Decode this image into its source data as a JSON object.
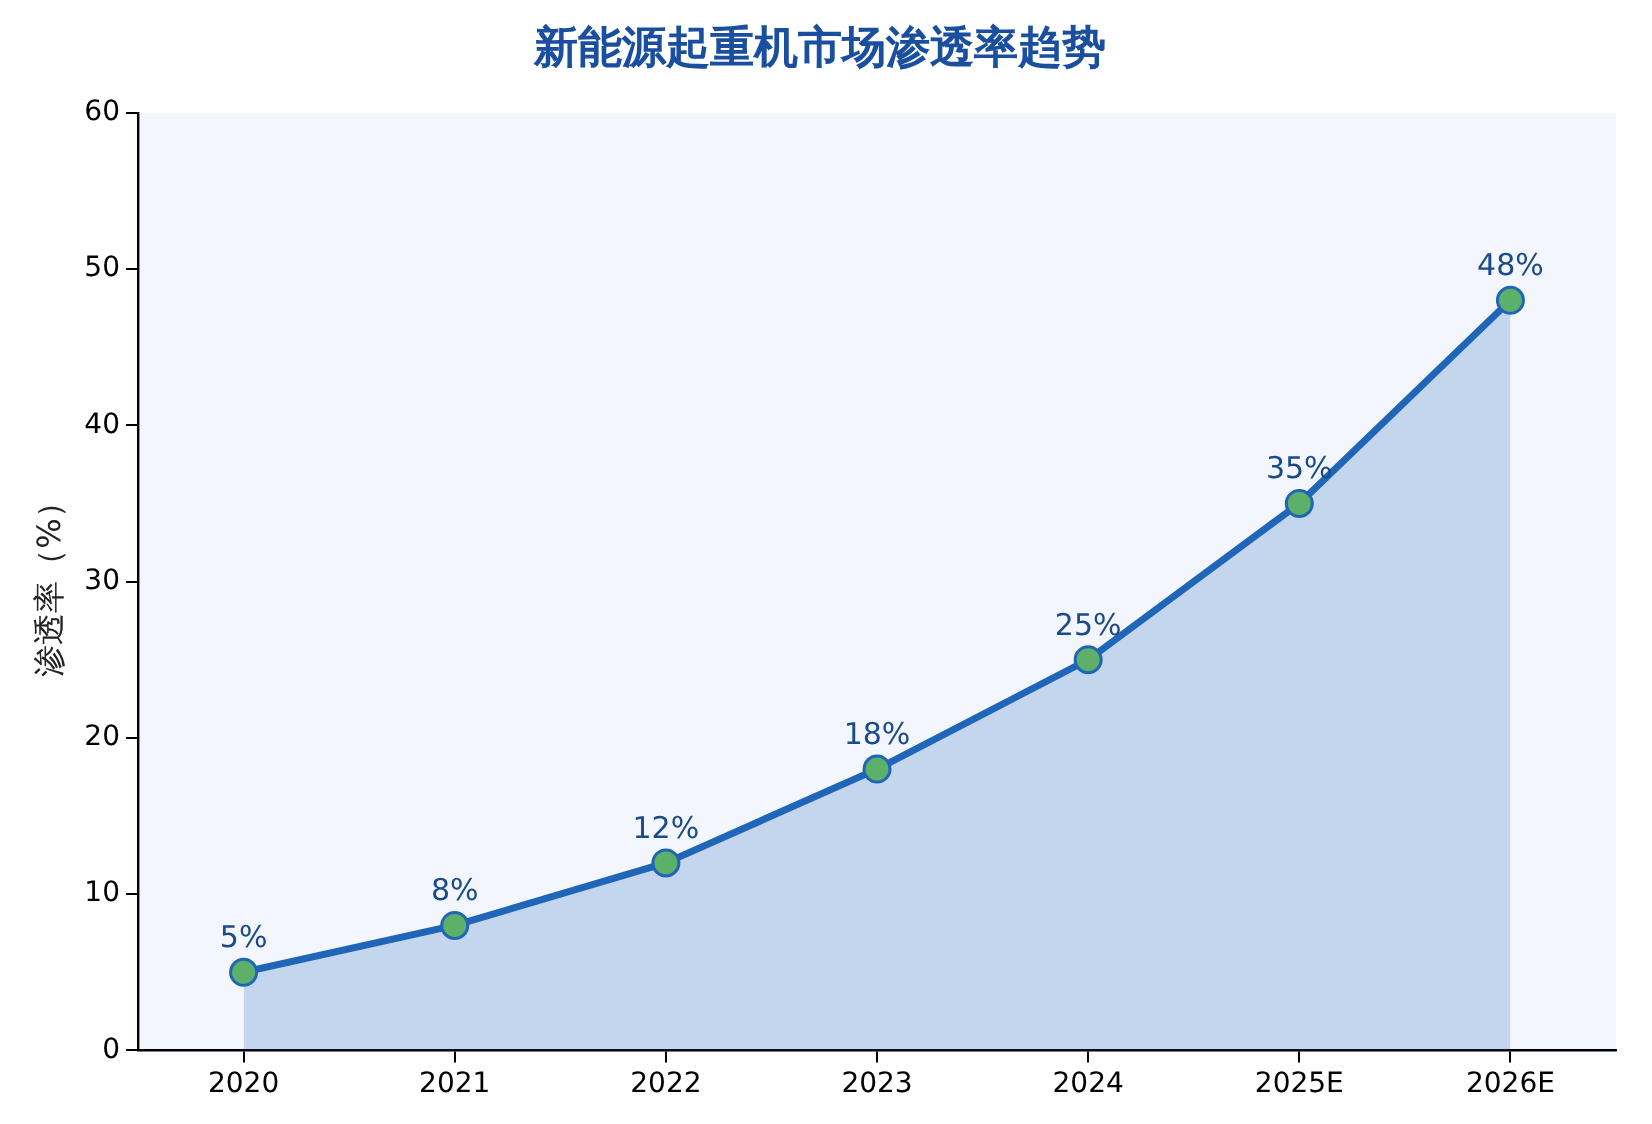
{
  "chart_data": {
    "type": "area",
    "title": "新能源起重机市场渗透率趋势",
    "ylabel": "渗透率（%）",
    "categories": [
      "2020",
      "2021",
      "2022",
      "2023",
      "2024",
      "2025E",
      "2026E"
    ],
    "series": [
      {
        "color": "#1f66b8",
        "values": [
          5,
          8,
          12,
          18,
          25,
          35,
          48
        ],
        "value_labels": [
          "5%",
          "8%",
          "12%",
          "18%",
          "25%",
          "35%",
          "48%"
        ]
      }
    ],
    "ylim": [
      0,
      60
    ],
    "yticks": [
      0,
      10,
      20,
      30,
      40,
      50,
      60
    ],
    "grid": false,
    "legend": false,
    "marker": "circle",
    "line_style": "solid"
  }
}
